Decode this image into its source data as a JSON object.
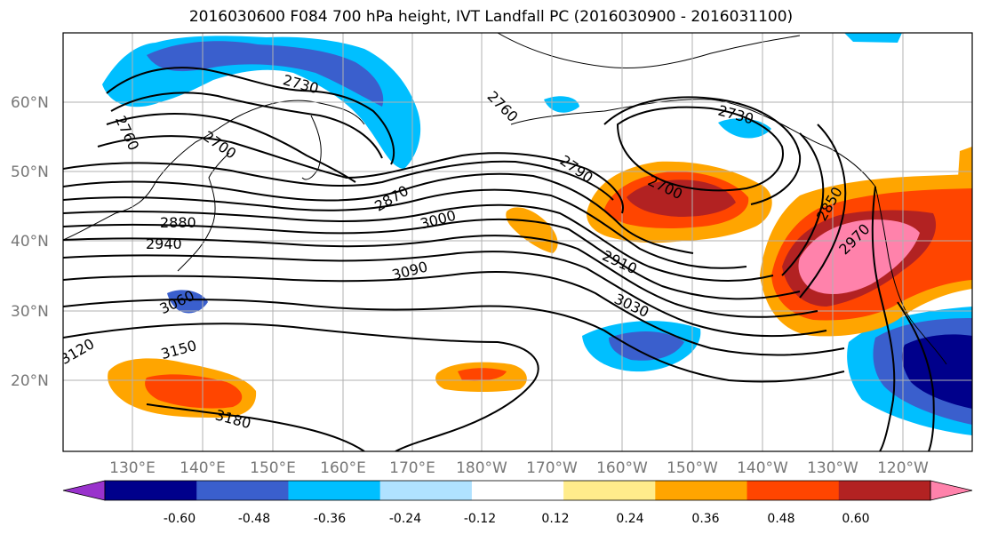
{
  "title": "2016030600 F084 700 hPa height, IVT Landfall PC (2016030900 - 2016031100)",
  "latitude_labels": [
    "60°N",
    "50°N",
    "40°N",
    "30°N",
    "20°N"
  ],
  "longitude_labels": [
    "130°E",
    "140°E",
    "150°E",
    "160°E",
    "170°E",
    "180°W",
    "170°W",
    "160°W",
    "150°W",
    "140°W",
    "130°W",
    "120°W"
  ],
  "contour_labels": [
    {
      "id": "c2730a",
      "text": "2730"
    },
    {
      "id": "c2760a",
      "text": "2760"
    },
    {
      "id": "c2700a",
      "text": "2700"
    },
    {
      "id": "c2760b",
      "text": "2760"
    },
    {
      "id": "c2730b",
      "text": "2730"
    },
    {
      "id": "c2870",
      "text": "2870"
    },
    {
      "id": "c2790",
      "text": "2790"
    },
    {
      "id": "c2700b",
      "text": "2700"
    },
    {
      "id": "c2850",
      "text": "2850"
    },
    {
      "id": "c2880",
      "text": "2880"
    },
    {
      "id": "c3000",
      "text": "3000"
    },
    {
      "id": "c2940",
      "text": "2940"
    },
    {
      "id": "c2970",
      "text": "2970"
    },
    {
      "id": "c3090",
      "text": "3090"
    },
    {
      "id": "c2910",
      "text": "2910"
    },
    {
      "id": "c3060",
      "text": "3060"
    },
    {
      "id": "c3030",
      "text": "3030"
    },
    {
      "id": "c3150",
      "text": "3150"
    },
    {
      "id": "c3180",
      "text": "3180"
    },
    {
      "id": "c3120",
      "text": "3120"
    }
  ],
  "colorbar": {
    "colors": [
      "#9932cc",
      "#00008b",
      "#3a5fcd",
      "#00bfff",
      "#b0e2ff",
      "#ffffff",
      "#ffec8b",
      "#ffa500",
      "#ff4500",
      "#b22222",
      "#ff82ab"
    ],
    "tick_labels": [
      "-0.60",
      "-0.48",
      "-0.36",
      "-0.24",
      "-0.12",
      "0.12",
      "0.24",
      "0.36",
      "0.48",
      "0.60"
    ]
  },
  "shading_colors": {
    "neg_light": "#00bfff",
    "neg_mid": "#3a5fcd",
    "neg_deep": "#00008b",
    "pos_light": "#ffa500",
    "pos_pale": "#ffec8b",
    "pos_mid": "#ff4500",
    "pos_high": "#b22222",
    "pos_max": "#ff82ab"
  }
}
